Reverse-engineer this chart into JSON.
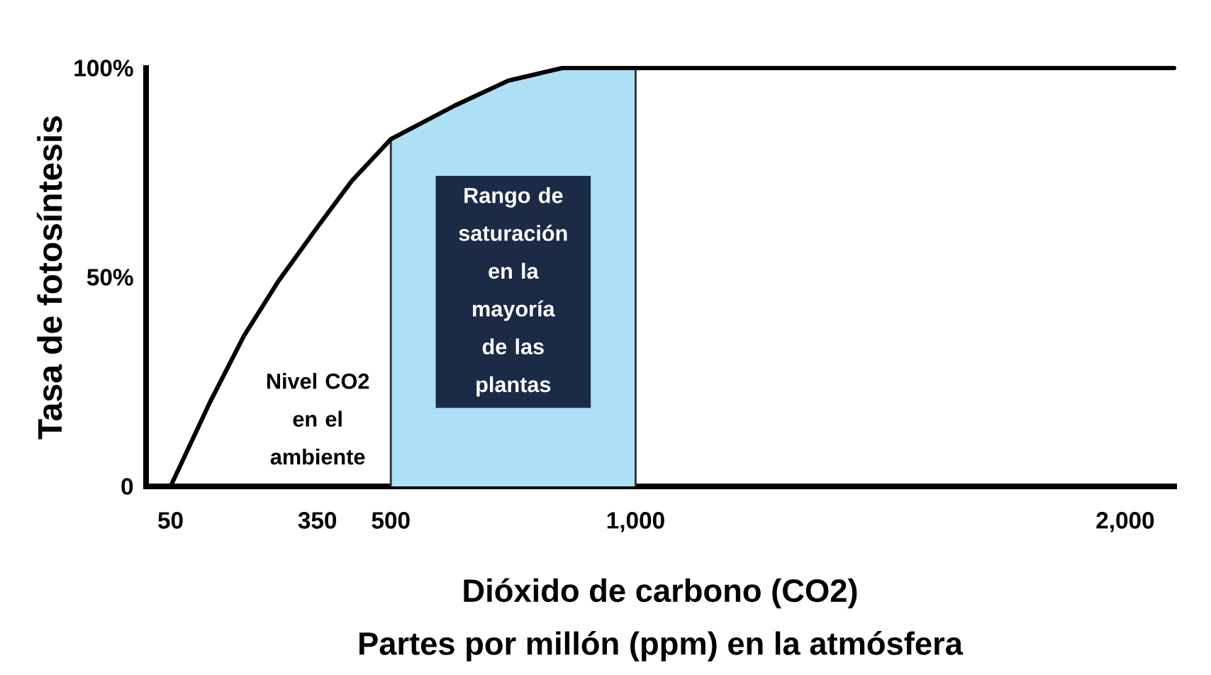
{
  "chart_data": {
    "type": "line",
    "xlabel": "Dióxido de carbono (CO2)\nPartes por millón (ppm) en la atmósfera",
    "ylabel": "Tasa de fotosíntesis",
    "x": [
      50,
      130,
      200,
      270,
      350,
      420,
      500,
      630,
      740,
      850,
      2100
    ],
    "values": [
      0,
      20,
      36,
      49,
      62,
      73,
      83,
      91,
      97,
      100,
      100
    ],
    "color": "#000000",
    "xlim": [
      0,
      2100
    ],
    "xticks": [
      50,
      350,
      500,
      {
        "value": 1000,
        "label": "1,000"
      },
      {
        "value": 2000,
        "label": "2,000"
      }
    ],
    "ylim": [
      0,
      100
    ],
    "yticks": [
      0,
      {
        "value": 50,
        "label": "50%"
      },
      {
        "value": 100,
        "label": "100%"
      }
    ],
    "bands": [
      {
        "axis": "x",
        "from": 500,
        "to": 1000,
        "label": "Rango de\nsaturación\nen la\nmayoría\nde las\nplantas",
        "color": "#aee0f8"
      }
    ],
    "annotations": [
      "Nivel CO2\nen el\nambiente"
    ]
  }
}
